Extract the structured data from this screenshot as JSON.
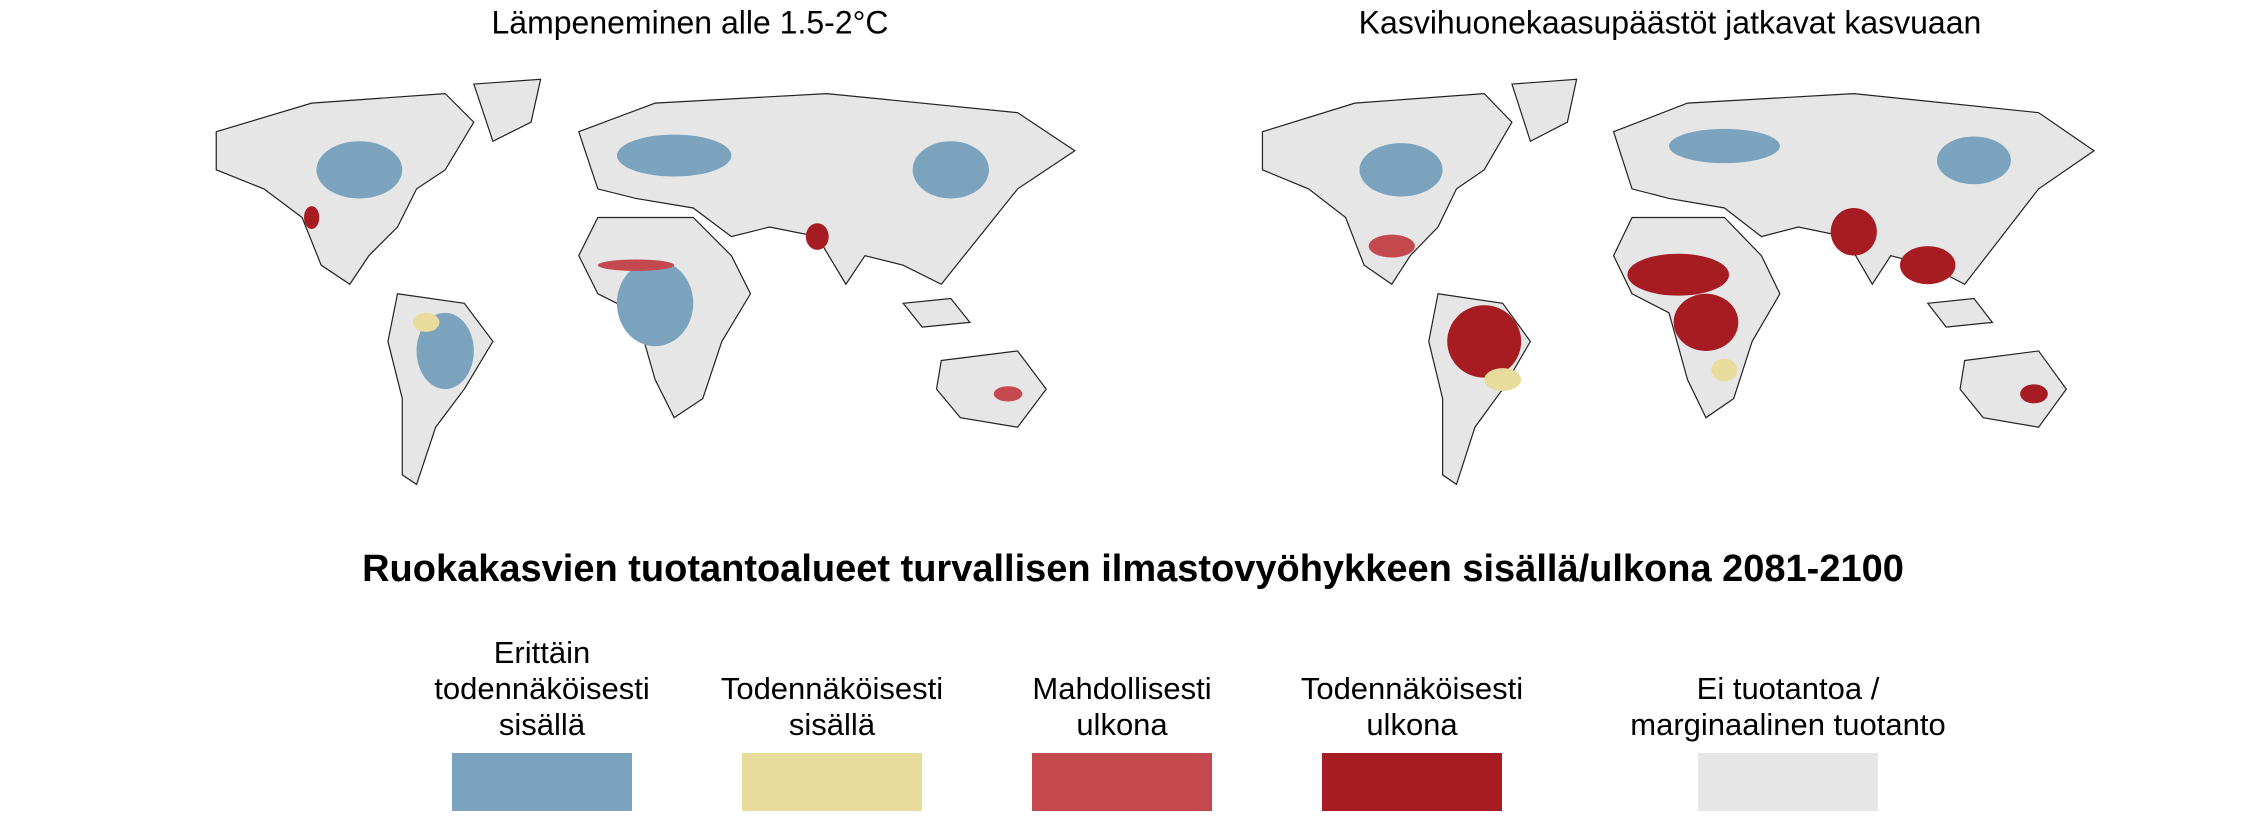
{
  "maps": [
    {
      "title": "Lämpeneminen alle 1.5-2°C"
    },
    {
      "title": "Kasvihuonekaasupäästöt jatkavat kasvuaan"
    }
  ],
  "caption": "Ruokakasvien tuotantoalueet turvallisen ilmastovyöhykkeen sisällä/ulkona 2081-2100",
  "legend": [
    {
      "lines": [
        "Erittäin",
        "todennäköisesti",
        "sisällä"
      ],
      "color": "#7ba3be"
    },
    {
      "lines": [
        "Todennäköisesti",
        "sisällä"
      ],
      "color": "#e8dc9c"
    },
    {
      "lines": [
        "Mahdollisesti",
        "ulkona"
      ],
      "color": "#c4494f"
    },
    {
      "lines": [
        "Todennäköisesti",
        "ulkona"
      ],
      "color": "#a61c22"
    },
    {
      "lines": [
        "Ei tuotantoa /",
        "marginaalinen tuotanto"
      ],
      "color": "#e6e6e6"
    }
  ]
}
